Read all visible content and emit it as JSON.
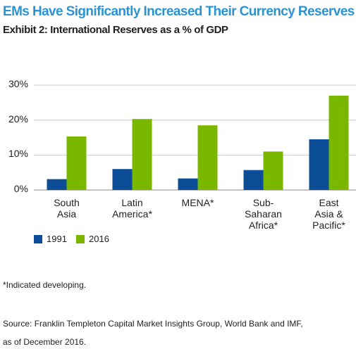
{
  "chart_data": {
    "type": "bar",
    "title": "EMs Have Significantly Increased Their Currency Reserves",
    "subtitle": "Exhibit 2: International Reserves as a % of GDP",
    "categories": [
      "South\nAsia",
      "Latin\nAmerica*",
      "MENA*",
      "Sub-\nSaharan\nAfrica*",
      "East\nAsia &\nPacific*"
    ],
    "series": [
      {
        "name": "1991",
        "color": "#0b4d96",
        "values": [
          3.1,
          6,
          3.3,
          5.7,
          14.5
        ]
      },
      {
        "name": "2016",
        "color": "#7ab800",
        "values": [
          15.3,
          20.3,
          18.5,
          11,
          27
        ]
      }
    ],
    "ylim": [
      0,
      30
    ],
    "yticks": [
      {
        "value": 0,
        "label": "0%"
      },
      {
        "value": 10,
        "label": "10%"
      },
      {
        "value": 20,
        "label": "20%"
      },
      {
        "value": 30,
        "label": "30%"
      }
    ],
    "grid": true,
    "note": "*Indicated developing.",
    "source": "Source: Franklin Templeton Capital Market Insights Group, World Bank and IMF,\nas of December 2016."
  }
}
